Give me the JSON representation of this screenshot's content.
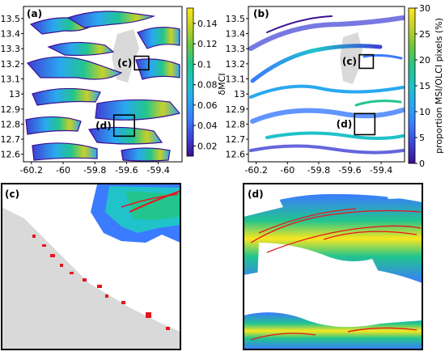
{
  "colors": {
    "land": "#d9d9d9",
    "bloom_red": "#e8141b",
    "cmap": [
      "#3b0f8f",
      "#3f3fd6",
      "#3a7bff",
      "#2aa8f0",
      "#1fc3c9",
      "#22c58e",
      "#6cc63e",
      "#c7d028",
      "#f9e71e"
    ]
  },
  "chart_data": [
    {
      "panel_label": "(a)",
      "type": "heatmap",
      "xticks": [
        "-60.2",
        "-60",
        "-59.8",
        "-59.6",
        "-59.4"
      ],
      "xlim": [
        -60.25,
        -59.25
      ],
      "yticks": [
        "12.6",
        "12.7",
        "12.8",
        "12.9",
        "13",
        "13.1",
        "13.2",
        "13.3",
        "13.4",
        "13.5"
      ],
      "ylim": [
        12.55,
        13.58
      ],
      "colorbar": {
        "label": "δMCI",
        "ticks": [
          "0.02",
          "0.04",
          "0.06",
          "0.08",
          "0.1",
          "0.12",
          "0.14"
        ],
        "range": [
          0.01,
          0.155
        ]
      },
      "insets": [
        {
          "label": "(c)",
          "x": [
            -59.55,
            -59.46
          ],
          "y": [
            13.16,
            13.25
          ]
        },
        {
          "label": "(d)",
          "x": [
            -59.68,
            -59.55
          ],
          "y": [
            12.72,
            12.86
          ]
        }
      ]
    },
    {
      "panel_label": "(b)",
      "type": "heatmap",
      "xticks": [
        "-60.2",
        "-60",
        "-59.8",
        "-59.6",
        "-59.4"
      ],
      "xlim": [
        -60.25,
        -59.25
      ],
      "yticks": [
        "12.6",
        "12.7",
        "12.8",
        "12.9",
        "13",
        "13.1",
        "13.2",
        "13.3",
        "13.4",
        "13.5"
      ],
      "ylim": [
        12.55,
        13.58
      ],
      "colorbar": {
        "label": "proportion MSI/OLCI pixels (%)",
        "ticks": [
          "0",
          "5",
          "10",
          "15",
          "20",
          "25",
          "30"
        ],
        "range": [
          0,
          30
        ]
      },
      "insets": [
        {
          "label": "(c)",
          "x": [
            -59.54,
            -59.45
          ],
          "y": [
            13.17,
            13.26
          ]
        },
        {
          "label": "(d)",
          "x": [
            -59.57,
            -59.44
          ],
          "y": [
            12.73,
            12.87
          ]
        }
      ]
    },
    {
      "panel_label": "(c)",
      "type": "heatmap"
    },
    {
      "panel_label": "(d)",
      "type": "heatmap"
    }
  ]
}
